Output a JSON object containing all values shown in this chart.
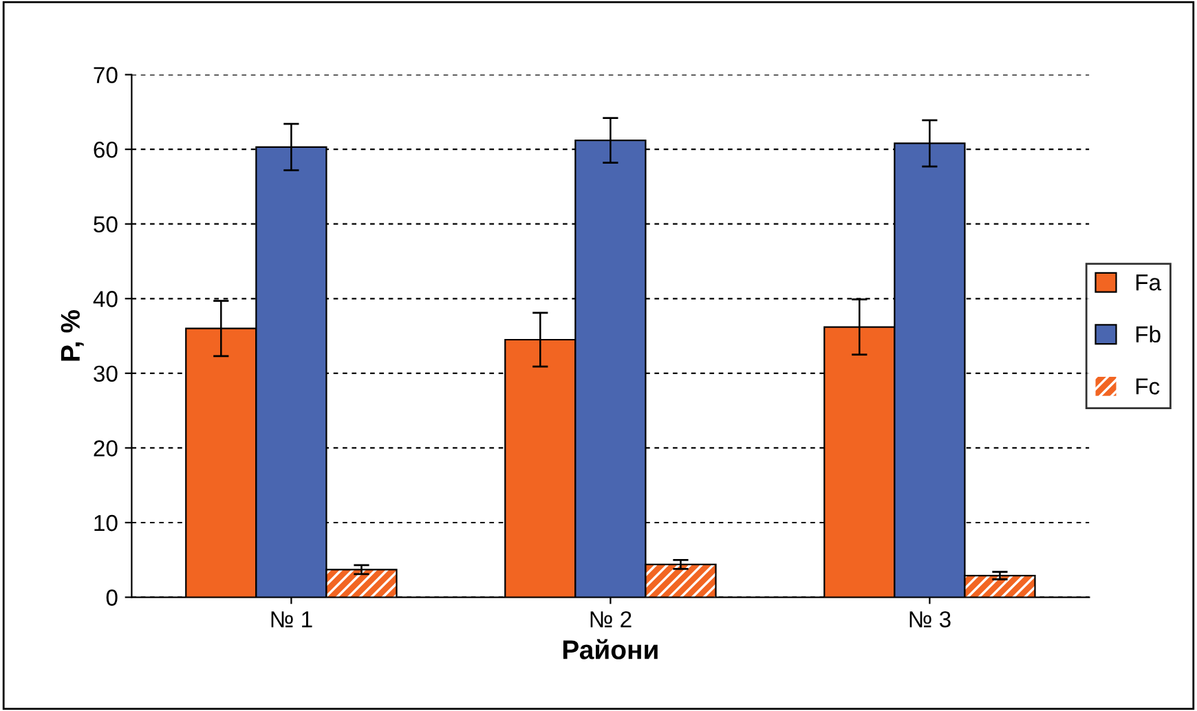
{
  "chart_data": {
    "type": "bar",
    "xlabel": "Райони",
    "ylabel": "P, %",
    "categories": [
      "№ 1",
      "№ 2",
      "№ 3"
    ],
    "series": [
      {
        "name": "Fa",
        "color": "#f26522",
        "values": [
          36.0,
          34.5,
          36.2
        ],
        "errors": [
          3.7,
          3.6,
          3.7
        ]
      },
      {
        "name": "Fb",
        "color": "#4a66b0",
        "values": [
          60.3,
          61.2,
          60.8
        ],
        "errors": [
          3.1,
          3.0,
          3.1
        ]
      },
      {
        "name": "Fc",
        "color": "#f26522",
        "values": [
          3.7,
          4.4,
          2.9
        ],
        "errors": [
          0.6,
          0.6,
          0.5
        ]
      }
    ],
    "ylim": [
      0,
      70
    ],
    "yticks": [
      0,
      10,
      20,
      30,
      40,
      50,
      60,
      70
    ],
    "grid": "y",
    "legend": "right"
  }
}
